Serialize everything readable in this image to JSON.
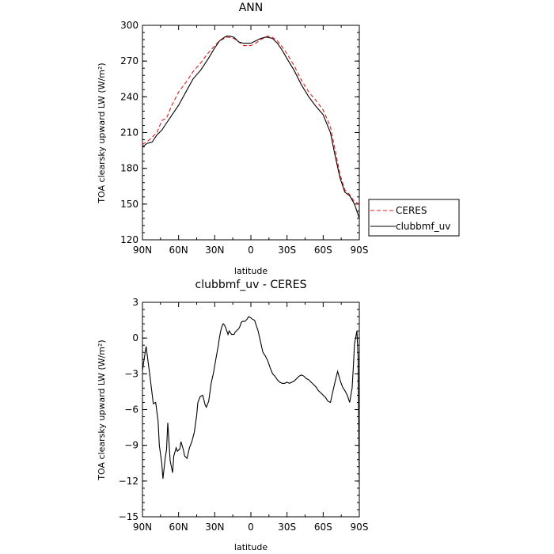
{
  "chart_data": [
    {
      "type": "line",
      "title": "ANN",
      "xlabel": "latitude",
      "ylabel": "TOA clearsky upward LW (W/m²)",
      "xlim": [
        90,
        -90
      ],
      "ylim": [
        120,
        300
      ],
      "x_ticks": [
        90,
        60,
        30,
        0,
        -30,
        -60,
        -90
      ],
      "x_tick_labels": [
        "90N",
        "60N",
        "30N",
        "0",
        "30S",
        "60S",
        "90S"
      ],
      "y_ticks": [
        120,
        150,
        180,
        210,
        240,
        270,
        300
      ],
      "y_tick_labels": [
        "120",
        "150",
        "180",
        "210",
        "240",
        "270",
        "300"
      ],
      "legend_position": "right",
      "series": [
        {
          "name": "CERES",
          "color": "#e41a1c",
          "dash": "dashed",
          "x": [
            90,
            84,
            78,
            74,
            72,
            70,
            66,
            60,
            54,
            48,
            42,
            36,
            30,
            26,
            22,
            20,
            18,
            14,
            10,
            6,
            0,
            -4,
            -8,
            -12,
            -14,
            -18,
            -22,
            -26,
            -30,
            -36,
            -42,
            -48,
            -54,
            -60,
            -66,
            -70,
            -74,
            -78,
            -82,
            -86,
            -90
          ],
          "y": [
            200,
            204,
            210,
            220,
            221,
            222,
            232,
            244,
            252,
            261,
            268,
            276,
            283,
            287,
            289,
            290,
            290,
            289,
            286,
            283,
            283,
            285,
            288,
            290,
            291,
            290,
            287,
            282,
            276,
            266,
            254,
            244,
            237,
            229,
            215,
            195,
            175,
            162,
            158,
            152,
            150
          ]
        },
        {
          "name": "clubbmf_uv",
          "color": "#000000",
          "dash": "solid",
          "x": [
            90,
            86,
            82,
            78,
            74,
            70,
            66,
            60,
            54,
            48,
            42,
            36,
            30,
            26,
            22,
            20,
            18,
            14,
            10,
            6,
            0,
            -4,
            -8,
            -12,
            -14,
            -18,
            -22,
            -26,
            -30,
            -36,
            -42,
            -48,
            -54,
            -60,
            -66,
            -70,
            -74,
            -78,
            -82,
            -86,
            -90
          ],
          "y": [
            198,
            201,
            202,
            208,
            212,
            218,
            224,
            233,
            244,
            255,
            262,
            271,
            281,
            287,
            290,
            291,
            291,
            290,
            286,
            285,
            285,
            287,
            289,
            290,
            290,
            289,
            285,
            279,
            272,
            262,
            250,
            240,
            232,
            225,
            210,
            190,
            172,
            160,
            157,
            150,
            138
          ]
        }
      ]
    },
    {
      "type": "line",
      "title": "clubbmf_uv - CERES",
      "xlabel": "latitude",
      "ylabel": "TOA clearsky upward LW (W/m²)",
      "xlim": [
        90,
        -90
      ],
      "ylim": [
        -15,
        3
      ],
      "x_ticks": [
        90,
        60,
        30,
        0,
        -30,
        -60,
        -90
      ],
      "x_tick_labels": [
        "90N",
        "60N",
        "30N",
        "0",
        "30S",
        "60S",
        "90S"
      ],
      "y_ticks": [
        -15,
        -12,
        -9,
        -6,
        -3,
        0,
        3
      ],
      "y_tick_labels": [
        "−15",
        "−12",
        "−9",
        "−6",
        "−3",
        "0",
        "3"
      ],
      "series": [
        {
          "color": "#000000",
          "dash": "solid",
          "x": [
            90,
            87,
            84,
            81,
            79,
            77,
            76,
            74,
            73,
            71,
            70,
            69,
            67,
            65,
            64,
            62,
            61,
            59,
            58,
            56,
            55,
            53,
            51,
            49,
            47,
            45,
            44,
            42,
            40,
            38,
            37,
            35,
            33,
            31,
            29,
            27,
            26,
            25,
            24,
            23,
            22,
            21,
            20,
            19,
            18,
            16,
            14,
            13,
            12,
            11,
            10,
            9,
            8,
            7,
            6,
            5,
            3,
            2,
            0,
            -1,
            -3,
            -4,
            -6,
            -8,
            -10,
            -12,
            -14,
            -16,
            -18,
            -20,
            -22,
            -24,
            -26,
            -28,
            -30,
            -32,
            -34,
            -36,
            -38,
            -40,
            -42,
            -44,
            -46,
            -48,
            -50,
            -52,
            -54,
            -56,
            -58,
            -60,
            -62,
            -64,
            -66,
            -68,
            -70,
            -72,
            -74,
            -76,
            -78,
            -80,
            -82,
            -84,
            -85,
            -86,
            -88,
            -89,
            -90
          ],
          "y": [
            -2.7,
            -0.7,
            -3,
            -5.5,
            -5.4,
            -7,
            -9,
            -10.5,
            -11.8,
            -10,
            -9.4,
            -7.1,
            -10.3,
            -11.3,
            -9.9,
            -9.2,
            -9.5,
            -9.3,
            -8.7,
            -9.4,
            -9.9,
            -10.1,
            -9.2,
            -8.7,
            -7.9,
            -6.5,
            -5.4,
            -4.9,
            -4.8,
            -5.6,
            -5.8,
            -5.3,
            -3.8,
            -2.9,
            -1.7,
            -0.6,
            0.1,
            0.6,
            1,
            1.2,
            1.1,
            0.9,
            0.6,
            0.3,
            0.6,
            0.3,
            0.3,
            0.5,
            0.6,
            0.7,
            0.8,
            1,
            1.3,
            1.4,
            1.4,
            1.4,
            1.6,
            1.8,
            1.7,
            1.6,
            1.5,
            1.2,
            0.6,
            -0.3,
            -1.2,
            -1.5,
            -1.9,
            -2.5,
            -3,
            -3.2,
            -3.5,
            -3.7,
            -3.8,
            -3.8,
            -3.7,
            -3.8,
            -3.7,
            -3.6,
            -3.4,
            -3.2,
            -3.1,
            -3.2,
            -3.4,
            -3.5,
            -3.7,
            -3.9,
            -4.1,
            -4.4,
            -4.6,
            -4.8,
            -5,
            -5.3,
            -5.4,
            -4.5,
            -3.6,
            -2.8,
            -3.5,
            -4.1,
            -4.4,
            -4.8,
            -5.4,
            -4.2,
            -2.5,
            -0.5,
            0.6,
            -1.6,
            -12.3
          ]
        }
      ]
    }
  ]
}
